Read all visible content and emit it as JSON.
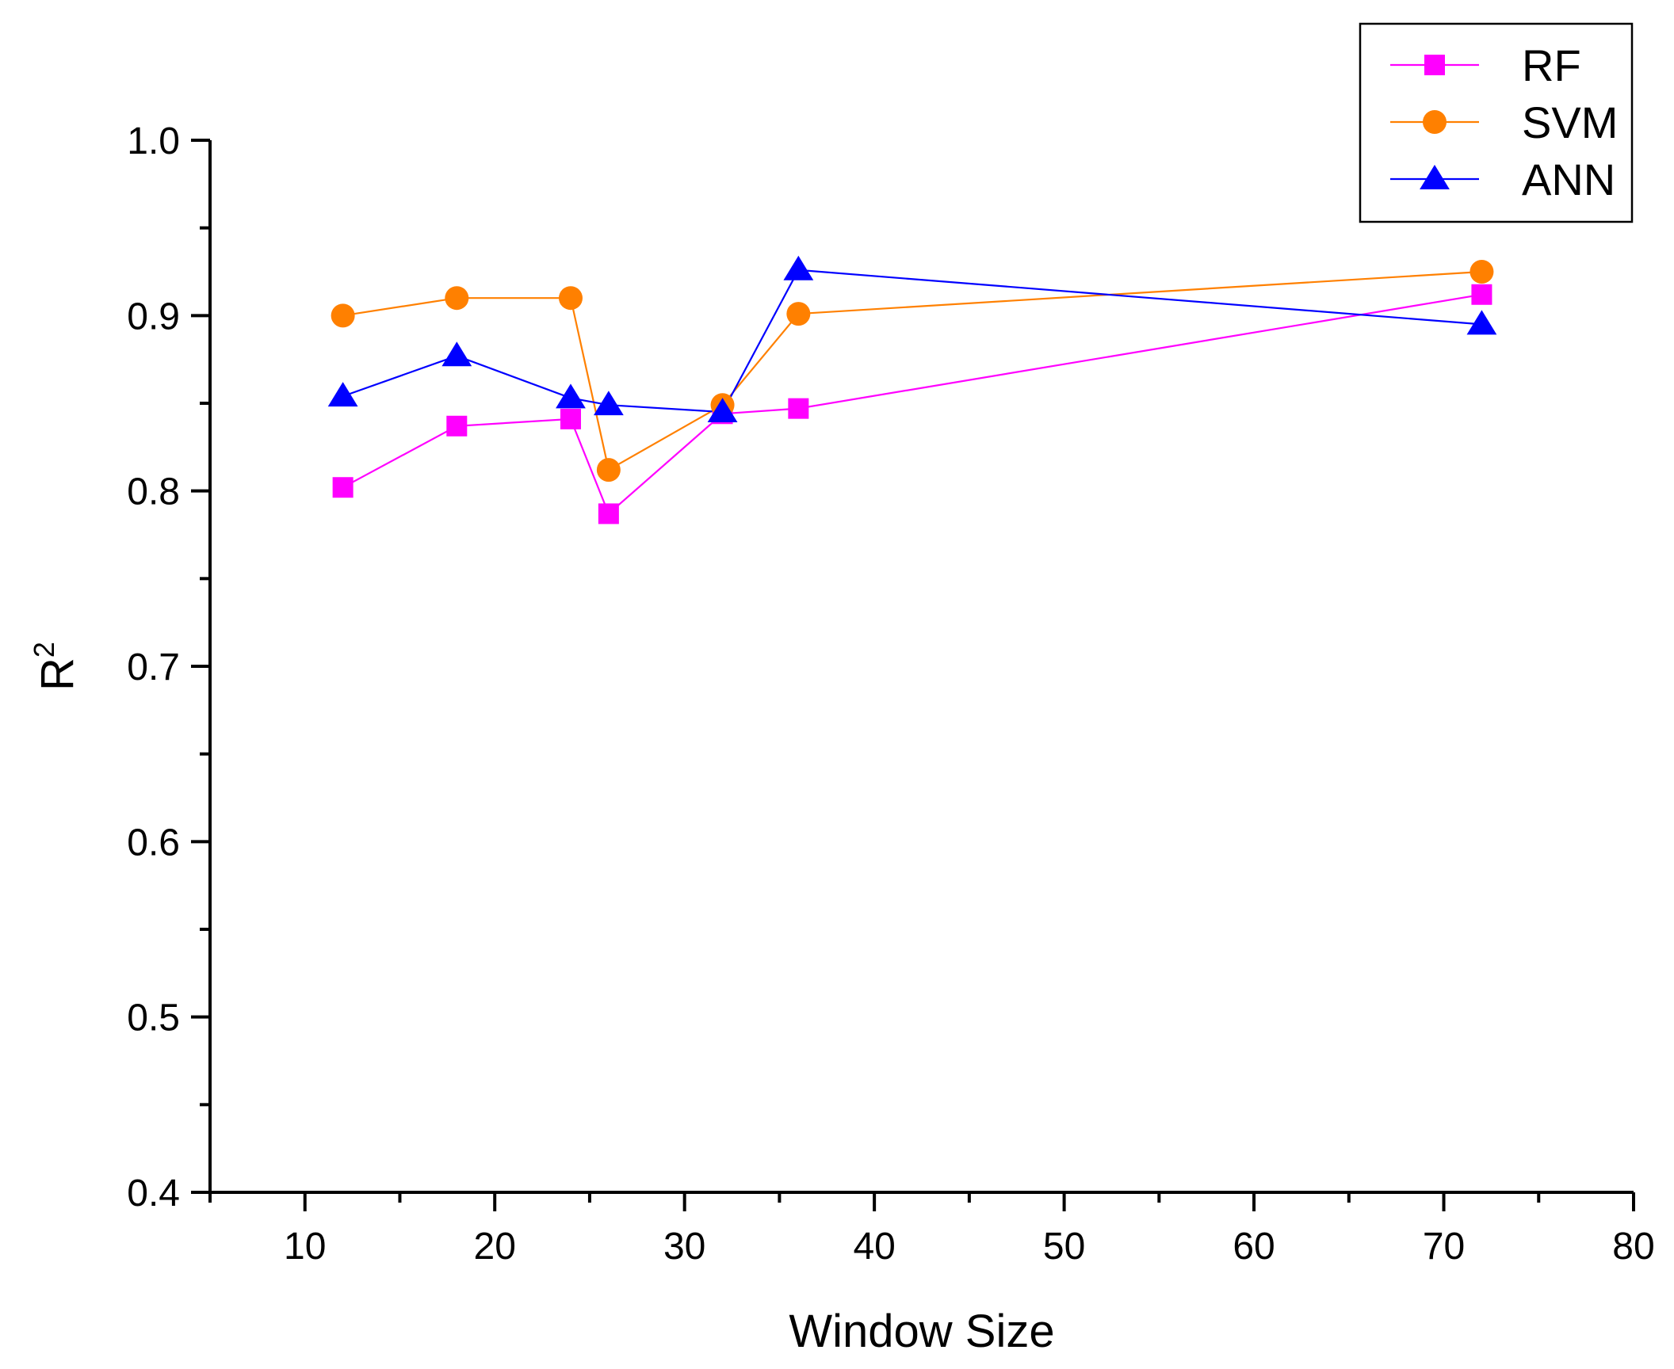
{
  "chart_data": {
    "type": "line",
    "title": "",
    "xlabel": "Window Size",
    "ylabel": "R",
    "ylabel_superscript": "2",
    "xlim": [
      5,
      80
    ],
    "ylim": [
      0.4,
      1.0
    ],
    "xticks": [
      10,
      20,
      30,
      40,
      50,
      60,
      70,
      80
    ],
    "xtick_labels": [
      "10",
      "20",
      "30",
      "40",
      "50",
      "60",
      "70",
      "80"
    ],
    "yticks": [
      0.4,
      0.5,
      0.6,
      0.7,
      0.8,
      0.9,
      1.0
    ],
    "ytick_labels": [
      "0.4",
      "0.5",
      "0.6",
      "0.7",
      "0.8",
      "0.9",
      "1.0"
    ],
    "grid": false,
    "legend_position": "top-right",
    "series": [
      {
        "name": "RF",
        "marker": "square",
        "color": "#ff00ff",
        "points": [
          [
            12,
            0.802
          ],
          [
            18,
            0.837
          ],
          [
            24,
            0.841
          ],
          [
            26,
            0.787
          ],
          [
            32,
            0.844
          ],
          [
            36,
            0.847
          ],
          [
            72,
            0.912
          ]
        ]
      },
      {
        "name": "SVM",
        "marker": "circle",
        "color": "#ff8000",
        "points": [
          [
            12,
            0.9
          ],
          [
            18,
            0.91
          ],
          [
            24,
            0.91
          ],
          [
            26,
            0.812
          ],
          [
            32,
            0.849
          ],
          [
            36,
            0.901
          ],
          [
            72,
            0.925
          ]
        ]
      },
      {
        "name": "ANN",
        "marker": "triangle",
        "color": "#0000ff",
        "points": [
          [
            12,
            0.854
          ],
          [
            18,
            0.877
          ],
          [
            24,
            0.853
          ],
          [
            26,
            0.849
          ],
          [
            32,
            0.845
          ],
          [
            36,
            0.926
          ],
          [
            72,
            0.895
          ]
        ]
      }
    ]
  }
}
